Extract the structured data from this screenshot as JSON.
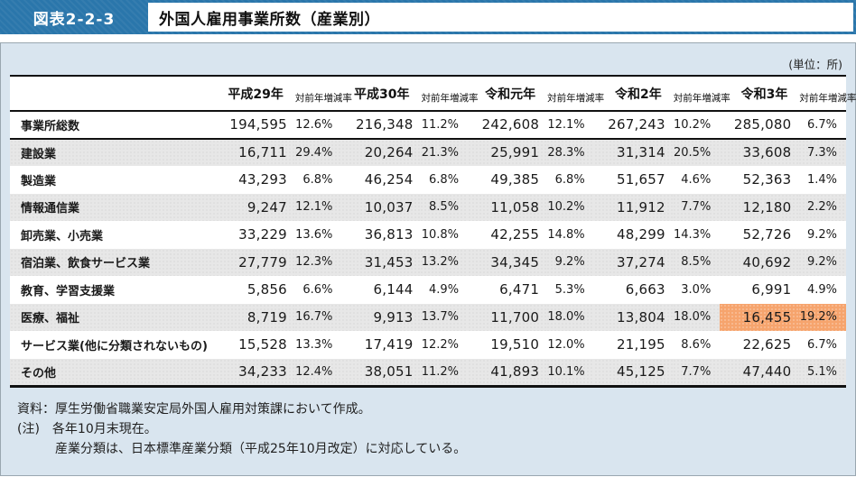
{
  "figure": {
    "number": "図表2-2-3",
    "title": "外国人雇用事業所数（産業別）"
  },
  "table": {
    "unit_label": "(単位：所)",
    "columns": [
      {
        "label": "",
        "type": "label"
      },
      {
        "label": "平成29年",
        "type": "year"
      },
      {
        "label": "対前年増減率",
        "type": "rate"
      },
      {
        "label": "平成30年",
        "type": "year"
      },
      {
        "label": "対前年増減率",
        "type": "rate"
      },
      {
        "label": "令和元年",
        "type": "year"
      },
      {
        "label": "対前年増減率",
        "type": "rate"
      },
      {
        "label": "令和2年",
        "type": "year"
      },
      {
        "label": "対前年増減率",
        "type": "rate"
      },
      {
        "label": "令和3年",
        "type": "year"
      },
      {
        "label": "対前年増減率",
        "type": "rate"
      }
    ],
    "rows": [
      {
        "label": "事業所総数",
        "total": true,
        "values": [
          "194,595",
          "12.6%",
          "216,348",
          "11.2%",
          "242,608",
          "12.1%",
          "267,243",
          "10.2%",
          "285,080",
          "6.7%"
        ]
      },
      {
        "label": "建設業",
        "values": [
          "16,711",
          "29.4%",
          "20,264",
          "21.3%",
          "25,991",
          "28.3%",
          "31,314",
          "20.5%",
          "33,608",
          "7.3%"
        ]
      },
      {
        "label": "製造業",
        "values": [
          "43,293",
          "6.8%",
          "46,254",
          "6.8%",
          "49,385",
          "6.8%",
          "51,657",
          "4.6%",
          "52,363",
          "1.4%"
        ]
      },
      {
        "label": "情報通信業",
        "values": [
          "9,247",
          "12.1%",
          "10,037",
          "8.5%",
          "11,058",
          "10.2%",
          "11,912",
          "7.7%",
          "12,180",
          "2.2%"
        ]
      },
      {
        "label": "卸売業、小売業",
        "values": [
          "33,229",
          "13.6%",
          "36,813",
          "10.8%",
          "42,255",
          "14.8%",
          "48,299",
          "14.3%",
          "52,726",
          "9.2%"
        ]
      },
      {
        "label": "宿泊業、飲食サービス業",
        "values": [
          "27,779",
          "12.3%",
          "31,453",
          "13.2%",
          "34,345",
          "9.2%",
          "37,274",
          "8.5%",
          "40,692",
          "9.2%"
        ]
      },
      {
        "label": "教育、学習支援業",
        "values": [
          "5,856",
          "6.6%",
          "6,144",
          "4.9%",
          "6,471",
          "5.3%",
          "6,663",
          "3.0%",
          "6,991",
          "4.9%"
        ]
      },
      {
        "label": "医療、福祉",
        "highlight_cols": [
          8,
          9
        ],
        "values": [
          "8,719",
          "16.7%",
          "9,913",
          "13.7%",
          "11,700",
          "18.0%",
          "13,804",
          "18.0%",
          "16,455",
          "19.2%"
        ]
      },
      {
        "label": "サービス業(他に分類されないもの)",
        "values": [
          "15,528",
          "13.3%",
          "17,419",
          "12.2%",
          "19,510",
          "12.0%",
          "21,195",
          "8.6%",
          "22,625",
          "6.7%"
        ]
      },
      {
        "label": "その他",
        "values": [
          "34,233",
          "12.4%",
          "38,051",
          "11.2%",
          "41,893",
          "10.1%",
          "45,125",
          "7.7%",
          "47,440",
          "5.1%"
        ]
      }
    ]
  },
  "notes": {
    "lines": [
      "資料：厚生労働省職業安定局外国人雇用対策課において作成。",
      "(注)　各年10月末現在。",
      "　　　産業分類は、日本標準産業分類（平成25年10月改定）に対応している。"
    ]
  },
  "colors": {
    "accent_blue": "#2a76ab",
    "panel_bg": "#d9e5ef",
    "stripe_gray": "#e7e7e7",
    "highlight_orange": "#f6a46d",
    "border_dark": "#1a1a1a"
  }
}
